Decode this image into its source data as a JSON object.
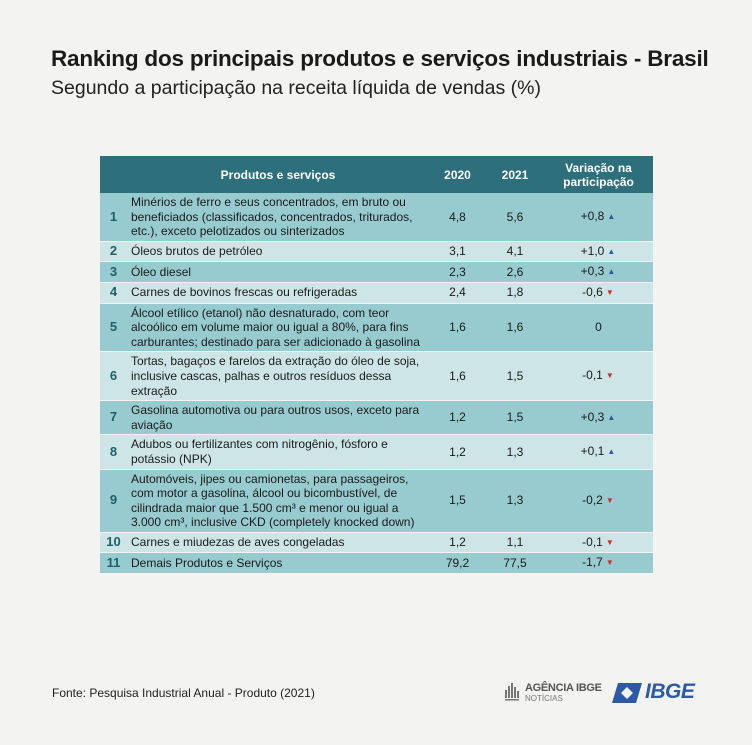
{
  "title": "Ranking dos principais produtos e serviços industriais - Brasil",
  "subtitle": "Segundo a participação na receita líquida de vendas (%)",
  "chart_data": {
    "type": "table",
    "columns": [
      "",
      "Produtos e serviços",
      "2020",
      "2021",
      "Variação na participação"
    ],
    "rows": [
      {
        "rank": "1",
        "product": "Minérios de ferro e seus concentrados, em bruto ou beneficiados (classificados, concentrados, triturados, etc.), exceto pelotizados ou sinterizados",
        "y2020": "4,8",
        "y2021": "5,6",
        "variation": "+0,8",
        "trend": "up"
      },
      {
        "rank": "2",
        "product": "Óleos brutos de petróleo",
        "y2020": "3,1",
        "y2021": "4,1",
        "variation": "+1,0",
        "trend": "up"
      },
      {
        "rank": "3",
        "product": "Óleo diesel",
        "y2020": "2,3",
        "y2021": "2,6",
        "variation": "+0,3",
        "trend": "up"
      },
      {
        "rank": "4",
        "product": "Carnes de bovinos frescas ou refrigeradas",
        "y2020": "2,4",
        "y2021": "1,8",
        "variation": "-0,6",
        "trend": "down"
      },
      {
        "rank": "5",
        "product": "Álcool etílico (etanol) não desnaturado, com teor alcoólico em volume maior ou igual a 80%, para fins carburantes; destinado para ser adicionado à gasolina",
        "y2020": "1,6",
        "y2021": "1,6",
        "variation": "0",
        "trend": "none"
      },
      {
        "rank": "6",
        "product": "Tortas, bagaços e farelos da extração do óleo de soja, inclusive cascas, palhas e outros resíduos dessa extração",
        "y2020": "1,6",
        "y2021": "1,5",
        "variation": "-0,1",
        "trend": "down"
      },
      {
        "rank": "7",
        "product": "Gasolina automotiva ou para outros usos, exceto para aviação",
        "y2020": "1,2",
        "y2021": "1,5",
        "variation": "+0,3",
        "trend": "up"
      },
      {
        "rank": "8",
        "product": "Adubos ou fertilizantes com nitrogênio, fósforo e potássio (NPK)",
        "y2020": "1,2",
        "y2021": "1,3",
        "variation": "+0,1",
        "trend": "up"
      },
      {
        "rank": "9",
        "product": "Automóveis, jipes ou camionetas, para passageiros, com motor a gasolina, álcool ou bicombustível, de cilindrada maior que 1.500 cm³ e menor ou igual a 3.000 cm³, inclusive CKD (completely knocked down)",
        "y2020": "1,5",
        "y2021": "1,3",
        "variation": "-0,2",
        "trend": "down"
      },
      {
        "rank": "10",
        "product": "Carnes e miudezas de aves congeladas",
        "y2020": "1,2",
        "y2021": "1,1",
        "variation": "-0,1",
        "trend": "down"
      },
      {
        "rank": "11",
        "product": "Demais Produtos e Serviços",
        "y2020": "79,2",
        "y2021": "77,5",
        "variation": "-1,7",
        "trend": "down"
      }
    ]
  },
  "colors": {
    "header": "#2e6f7c",
    "row_dark": "#97cbcf",
    "row_light": "#cde5e6",
    "rank_text": "#1d5f6b",
    "arrow_up": "#2b55a8",
    "arrow_down": "#d8262b"
  },
  "footer": {
    "source": "Fonte: Pesquisa Industrial Anual - Produto (2021)"
  },
  "logos": {
    "agencia_name": "AGÊNCIA IBGE",
    "agencia_sub": "NOTÍCIAS",
    "ibge": "IBGE"
  }
}
